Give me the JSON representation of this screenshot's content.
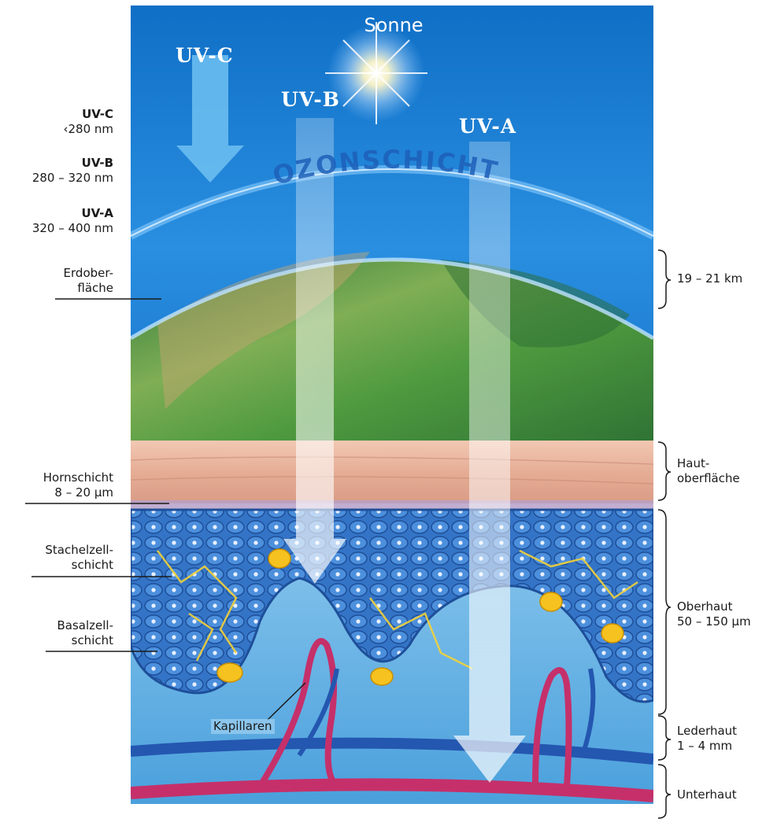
{
  "sun": {
    "label": "Sonne"
  },
  "ozone": {
    "label": "OZONSCHICHT"
  },
  "rays": [
    {
      "id": "uvc",
      "label": "UV-C"
    },
    {
      "id": "uvb",
      "label": "UV-B"
    },
    {
      "id": "uva",
      "label": "UV-A"
    }
  ],
  "wavelengths": [
    {
      "name": "UV-C",
      "range": "‹280 nm"
    },
    {
      "name": "UV-B",
      "range": "280 – 320 nm"
    },
    {
      "name": "UV-A",
      "range": "320 – 400 nm"
    }
  ],
  "left_labels": {
    "earth_surface": {
      "line1": "Erdober-",
      "line2": "fläche"
    },
    "horny_layer": {
      "line1": "Hornschicht",
      "line2": "8 – 20 µm"
    },
    "spiny_layer": {
      "line1": "Stachelzell-",
      "line2": "schicht"
    },
    "basal_layer": {
      "line1": "Basalzell-",
      "line2": "schicht"
    },
    "capillaries": "Kapillaren"
  },
  "right_labels": {
    "atmosphere": "19 – 21 km",
    "skin_surface": {
      "line1": "Haut-",
      "line2": "oberfläche"
    },
    "epidermis": {
      "line1": "Oberhaut",
      "line2": "50 – 150 µm"
    },
    "dermis": {
      "line1": "Lederhaut",
      "line2": "1 – 4 mm"
    },
    "subcutis": "Unterhaut"
  },
  "colors": {
    "sky": "#1d7fd1",
    "earth_green": "#4e9a3c",
    "skin_surface": "#e8b7a0",
    "epidermis_blue": "#2f6fbd",
    "artery": "#c5306a",
    "vein": "#2457b0"
  }
}
